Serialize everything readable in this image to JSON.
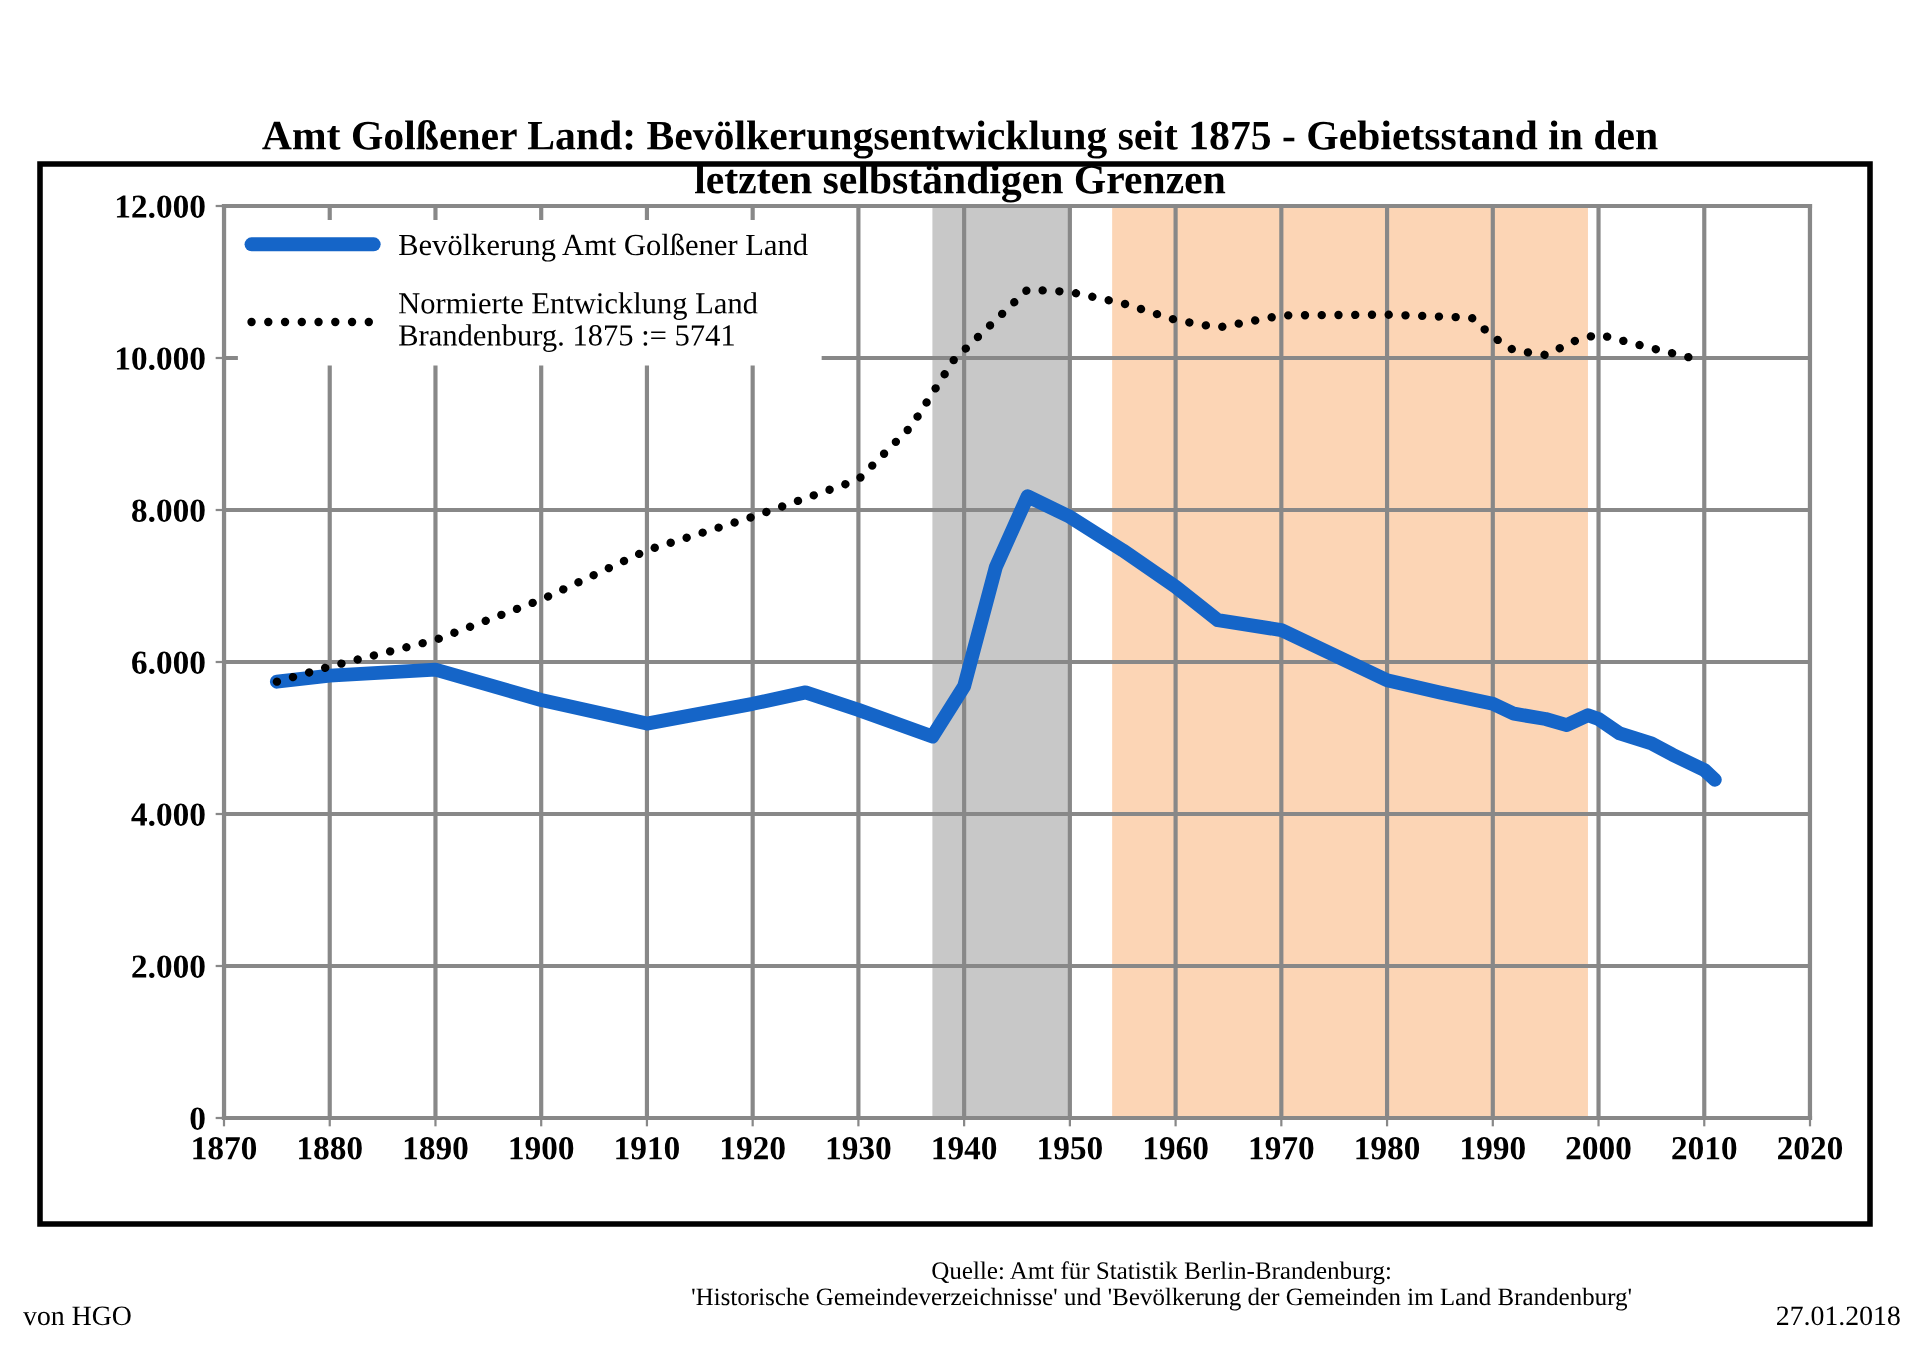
{
  "chart_data": {
    "type": "line",
    "title": "Amt Golßener Land: Bevölkerungsentwicklung seit 1875 - Gebietsstand in den letzten selbständigen Grenzen",
    "series": [
      {
        "name": "Bevölkerung Amt Golßener Land",
        "color": "#1565c8",
        "line_style": "solid",
        "x": [
          1875,
          1880,
          1890,
          1900,
          1910,
          1920,
          1925,
          1930,
          1937,
          1940,
          1943,
          1946,
          1950,
          1955,
          1960,
          1964,
          1970,
          1980,
          1985,
          1990,
          1992,
          1995,
          1997,
          1999,
          2000,
          2002,
          2005,
          2007,
          2010,
          2011
        ],
        "values": [
          5741,
          5820,
          5900,
          5500,
          5190,
          5450,
          5600,
          5370,
          5020,
          5680,
          7250,
          8180,
          7910,
          7470,
          6990,
          6550,
          6420,
          5760,
          5600,
          5450,
          5320,
          5250,
          5170,
          5300,
          5250,
          5060,
          4930,
          4780,
          4580,
          4450
        ]
      },
      {
        "name": "Normierte Entwicklung Land Brandenburg. 1875 := 5741",
        "color": "#000000",
        "line_style": "dotted",
        "x": [
          1875,
          1880,
          1890,
          1900,
          1910,
          1920,
          1930,
          1935,
          1939,
          1946,
          1950,
          1955,
          1960,
          1964,
          1970,
          1980,
          1988,
          1990,
          1992,
          1995,
          1998,
          2000,
          2005,
          2010
        ],
        "values": [
          5741,
          5940,
          6290,
          6820,
          7470,
          7910,
          8400,
          9100,
          9970,
          10900,
          10870,
          10720,
          10500,
          10400,
          10560,
          10570,
          10530,
          10280,
          10100,
          10040,
          10240,
          10310,
          10130,
          9960
        ]
      }
    ],
    "xlim": [
      1870,
      2020
    ],
    "xticks": [
      1870,
      1880,
      1890,
      1900,
      1910,
      1920,
      1930,
      1940,
      1950,
      1960,
      1970,
      1980,
      1990,
      2000,
      2010,
      2020
    ],
    "ylim": [
      0,
      12000
    ],
    "yticks": [
      0,
      {
        "value": 2000,
        "label": "2.000"
      },
      {
        "value": 4000,
        "label": "4.000"
      },
      {
        "value": 6000,
        "label": "6.000"
      },
      {
        "value": 8000,
        "label": "8.000"
      },
      {
        "value": 10000,
        "label": "10.000"
      },
      {
        "value": 12000,
        "label": "12.000"
      }
    ],
    "bands": [
      {
        "axis": "x",
        "from": 1937,
        "to": 1950,
        "color": "#c8c8c8"
      },
      {
        "axis": "x",
        "from": 1954,
        "to": 1999,
        "color": "#fcd5b5"
      }
    ],
    "grid": true,
    "legend": "top left",
    "marker": "none",
    "annotations": [
      "Quelle: Amt für Statistik Berlin-Brandenburg:\n'Historische Gemeindeverzeichnisse' und 'Bevölkerung der Gemeinden im Land Brandenburg'",
      "von HGO",
      "27.01.2018"
    ]
  }
}
